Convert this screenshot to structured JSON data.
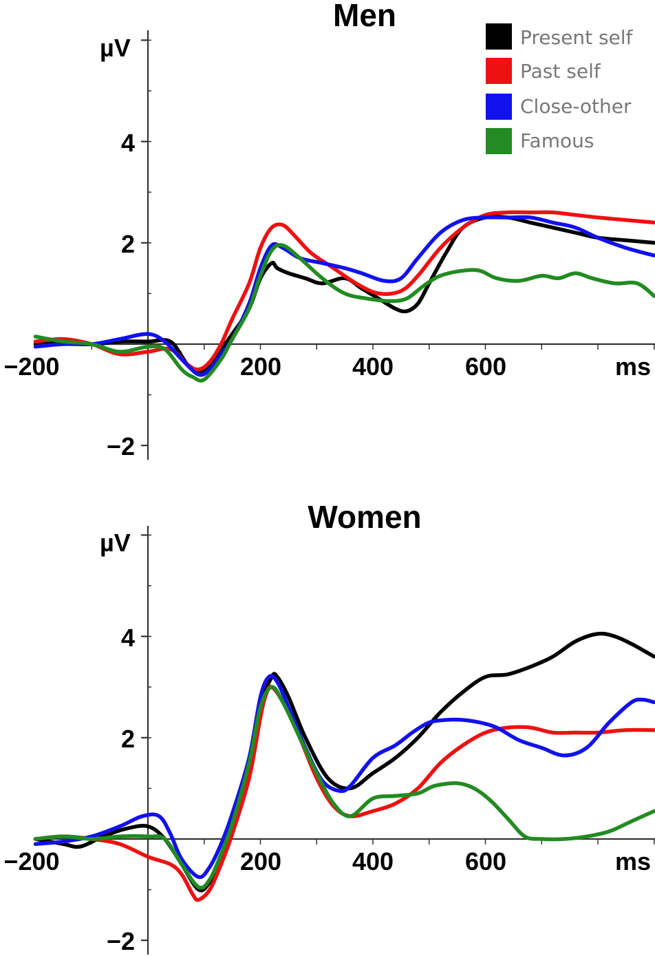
{
  "legend": [
    {
      "label": "Present self",
      "color": "#000000"
    },
    {
      "label": "Past self",
      "color": "#ee1111"
    },
    {
      "label": "Close-other",
      "color": "#1111ee"
    },
    {
      "label": "Famous",
      "color": "#228b22"
    }
  ],
  "chart_data": [
    {
      "type": "line",
      "title": "Men",
      "xlabel": "ms",
      "ylabel": "µV",
      "xlim": [
        -200,
        900
      ],
      "ylim": [
        -2,
        6
      ],
      "x_ticks": [
        "−200",
        "200",
        "400",
        "600"
      ],
      "y_ticks": [
        "4",
        "2",
        "−2"
      ],
      "legend_position": "top-right",
      "series": [
        {
          "name": "Present self",
          "color": "#000000",
          "x": [
            -200,
            -150,
            -100,
            -50,
            0,
            40,
            70,
            90,
            110,
            130,
            150,
            180,
            200,
            220,
            230,
            250,
            280,
            310,
            350,
            380,
            410,
            440,
            460,
            480,
            500,
            530,
            560,
            600,
            640,
            680,
            720,
            760,
            800,
            850,
            900
          ],
          "y": [
            0,
            0.05,
            0,
            0.05,
            0.05,
            0.05,
            -0.4,
            -0.55,
            -0.4,
            -0.1,
            0.2,
            0.7,
            1.3,
            1.6,
            1.5,
            1.4,
            1.3,
            1.2,
            1.3,
            1.1,
            0.9,
            0.7,
            0.65,
            0.8,
            1.2,
            1.8,
            2.3,
            2.5,
            2.5,
            2.4,
            2.3,
            2.2,
            2.1,
            2.05,
            2.0
          ]
        },
        {
          "name": "Past self",
          "color": "#ee1111",
          "x": [
            -200,
            -150,
            -100,
            -50,
            0,
            40,
            70,
            90,
            110,
            130,
            150,
            180,
            200,
            220,
            240,
            260,
            290,
            330,
            370,
            410,
            450,
            480,
            520,
            560,
            600,
            640,
            680,
            720,
            760,
            800,
            850,
            900
          ],
          "y": [
            0.05,
            0.1,
            0,
            -0.2,
            -0.15,
            -0.1,
            -0.4,
            -0.5,
            -0.35,
            0,
            0.5,
            1.2,
            1.9,
            2.3,
            2.35,
            2.15,
            1.8,
            1.5,
            1.2,
            1.0,
            1.05,
            1.35,
            1.9,
            2.3,
            2.55,
            2.6,
            2.6,
            2.6,
            2.55,
            2.5,
            2.45,
            2.4
          ]
        },
        {
          "name": "Close-other",
          "color": "#1111ee",
          "x": [
            -200,
            -150,
            -100,
            -50,
            0,
            30,
            60,
            90,
            110,
            130,
            150,
            180,
            200,
            220,
            240,
            270,
            310,
            350,
            380,
            420,
            450,
            480,
            520,
            560,
            600,
            640,
            680,
            720,
            760,
            800,
            850,
            900
          ],
          "y": [
            -0.05,
            0,
            0,
            0.1,
            0.2,
            0.05,
            -0.3,
            -0.6,
            -0.5,
            -0.2,
            0.1,
            0.8,
            1.5,
            1.95,
            1.9,
            1.7,
            1.6,
            1.5,
            1.4,
            1.25,
            1.3,
            1.7,
            2.2,
            2.45,
            2.5,
            2.5,
            2.5,
            2.4,
            2.3,
            2.1,
            1.9,
            1.75
          ]
        },
        {
          "name": "Famous",
          "color": "#228b22",
          "x": [
            -200,
            -150,
            -100,
            -50,
            0,
            30,
            60,
            80,
            100,
            130,
            150,
            180,
            200,
            220,
            240,
            270,
            310,
            350,
            390,
            430,
            460,
            490,
            520,
            560,
            590,
            620,
            660,
            700,
            730,
            760,
            790,
            830,
            870,
            900
          ],
          "y": [
            0.15,
            0.05,
            0,
            -0.15,
            -0.05,
            -0.1,
            -0.5,
            -0.65,
            -0.7,
            -0.3,
            0.1,
            0.7,
            1.35,
            1.85,
            1.95,
            1.7,
            1.3,
            1.0,
            0.9,
            0.85,
            0.9,
            1.15,
            1.35,
            1.45,
            1.45,
            1.3,
            1.25,
            1.35,
            1.3,
            1.4,
            1.3,
            1.2,
            1.2,
            0.95
          ]
        }
      ]
    },
    {
      "type": "line",
      "title": "Women",
      "xlabel": "ms",
      "ylabel": "µV",
      "xlim": [
        -200,
        900
      ],
      "ylim": [
        -2,
        6
      ],
      "x_ticks": [
        "−200",
        "200",
        "400",
        "600"
      ],
      "y_ticks": [
        "4",
        "2",
        "−2"
      ],
      "series": [
        {
          "name": "Present self",
          "color": "#000000",
          "x": [
            -200,
            -150,
            -120,
            -80,
            -40,
            0,
            30,
            60,
            90,
            110,
            130,
            150,
            180,
            200,
            220,
            230,
            250,
            280,
            320,
            360,
            400,
            440,
            480,
            520,
            560,
            600,
            640,
            680,
            720,
            760,
            800,
            830,
            860,
            900
          ],
          "y": [
            0,
            -0.1,
            -0.15,
            0.05,
            0.2,
            0.25,
            0,
            -0.5,
            -1.0,
            -0.85,
            -0.4,
            0.2,
            1.4,
            2.6,
            3.2,
            3.2,
            2.8,
            2.0,
            1.2,
            1.0,
            1.3,
            1.6,
            2.0,
            2.5,
            2.9,
            3.2,
            3.25,
            3.4,
            3.6,
            3.9,
            4.05,
            4.0,
            3.85,
            3.6
          ]
        },
        {
          "name": "Past self",
          "color": "#ee1111",
          "x": [
            -200,
            -150,
            -100,
            -50,
            0,
            40,
            60,
            80,
            90,
            110,
            130,
            150,
            180,
            200,
            210,
            220,
            240,
            270,
            300,
            330,
            360,
            400,
            440,
            480,
            520,
            560,
            600,
            640,
            680,
            720,
            760,
            800,
            850,
            900
          ],
          "y": [
            0,
            0.05,
            0,
            -0.1,
            -0.35,
            -0.5,
            -0.7,
            -1.1,
            -1.2,
            -1.0,
            -0.5,
            0.1,
            1.2,
            2.4,
            2.85,
            3.0,
            2.7,
            2.0,
            1.2,
            0.65,
            0.45,
            0.55,
            0.7,
            1.0,
            1.5,
            1.85,
            2.1,
            2.2,
            2.2,
            2.1,
            2.1,
            2.1,
            2.15,
            2.15
          ]
        },
        {
          "name": "Close-other",
          "color": "#1111ee",
          "x": [
            -200,
            -150,
            -100,
            -50,
            -10,
            20,
            40,
            60,
            90,
            110,
            130,
            150,
            180,
            200,
            215,
            230,
            250,
            280,
            310,
            340,
            360,
            400,
            440,
            470,
            500,
            530,
            560,
            590,
            620,
            660,
            700,
            740,
            780,
            820,
            860,
            880,
            900
          ],
          "y": [
            -0.1,
            -0.05,
            0.05,
            0.25,
            0.45,
            0.45,
            0.1,
            -0.4,
            -0.75,
            -0.55,
            -0.1,
            0.5,
            1.6,
            2.8,
            3.2,
            3.1,
            2.6,
            1.8,
            1.15,
            0.95,
            1.05,
            1.6,
            1.85,
            2.1,
            2.3,
            2.35,
            2.35,
            2.3,
            2.2,
            1.95,
            1.8,
            1.65,
            1.8,
            2.3,
            2.7,
            2.75,
            2.7
          ]
        },
        {
          "name": "Famous",
          "color": "#228b22",
          "x": [
            -200,
            -150,
            -100,
            -50,
            0,
            30,
            60,
            90,
            110,
            130,
            150,
            180,
            200,
            220,
            240,
            270,
            300,
            330,
            360,
            400,
            440,
            480,
            510,
            550,
            580,
            610,
            640,
            670,
            700,
            740,
            780,
            820,
            860,
            900
          ],
          "y": [
            0,
            0.05,
            0,
            0.05,
            0.05,
            0,
            -0.5,
            -0.95,
            -0.8,
            -0.3,
            0.3,
            1.5,
            2.6,
            3.0,
            2.7,
            2.0,
            1.3,
            0.7,
            0.45,
            0.8,
            0.85,
            0.9,
            1.05,
            1.1,
            1.0,
            0.75,
            0.4,
            0.05,
            0,
            0,
            0.05,
            0.15,
            0.35,
            0.55
          ]
        }
      ]
    }
  ]
}
